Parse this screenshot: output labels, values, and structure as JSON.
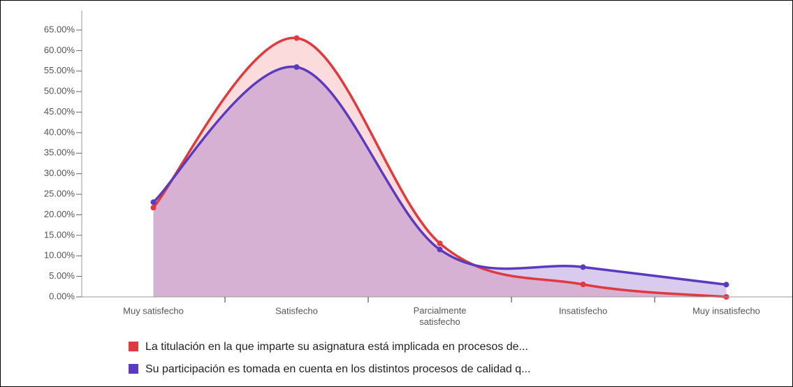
{
  "chart_data": {
    "type": "area",
    "categories": [
      "Muy satisfecho",
      "Satisfecho",
      "Parcialmente satisfecho",
      "Insatisfecho",
      "Muy insatisfecho"
    ],
    "series": [
      {
        "name": "La titulación en la que imparte su asignatura está implicada en procesos de...",
        "color": "#e03a3e",
        "values": [
          21.74,
          63.04,
          13.04,
          3.04,
          0
        ]
      },
      {
        "name": "Su participación es tomada en cuenta en los distintos procesos de calidad q...",
        "color": "#5a3bbf",
        "values": [
          23.08,
          55.98,
          11.54,
          7.26,
          2.99
        ]
      }
    ],
    "ylim": [
      0,
      65
    ],
    "yticks": [
      {
        "value": 0,
        "label": "0.00%"
      },
      {
        "value": 5,
        "label": "5.00%"
      },
      {
        "value": 10,
        "label": "10.00%"
      },
      {
        "value": 15,
        "label": "15.00%"
      },
      {
        "value": 20,
        "label": "20.00%"
      },
      {
        "value": 25,
        "label": "25.00%"
      },
      {
        "value": 30,
        "label": "30.00%"
      },
      {
        "value": 35,
        "label": "35.00%"
      },
      {
        "value": 40,
        "label": "40.00%"
      },
      {
        "value": 45,
        "label": "45.00%"
      },
      {
        "value": 50,
        "label": "50.00%"
      },
      {
        "value": 55,
        "label": "55.00%"
      },
      {
        "value": 60,
        "label": "60.00%"
      },
      {
        "value": 65,
        "label": "65.00%"
      }
    ],
    "legend": "bottom"
  }
}
